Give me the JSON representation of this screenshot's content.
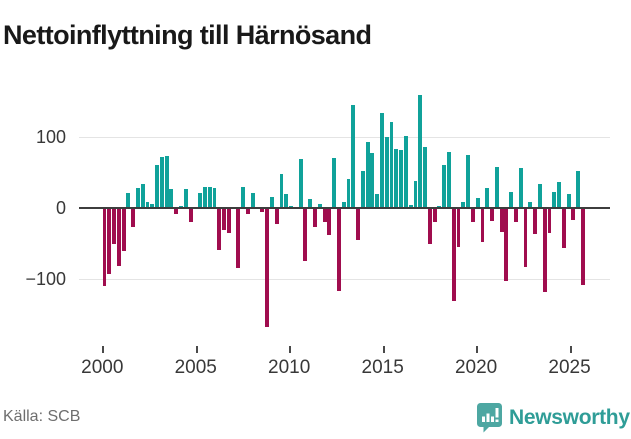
{
  "title": "Nettoinflyttning till Härnösand",
  "source": "Källa: SCB",
  "logo": {
    "text": "Newsworthy",
    "icon": "newsworthy-bars-icon"
  },
  "chart_data": {
    "type": "bar",
    "title": "Nettoinflyttning till Härnösand",
    "x_unit": "quarter",
    "x_range": [
      "2000 Q1",
      "2025 Q1"
    ],
    "grid": "horizontal",
    "legend": "none",
    "ylim": [
      -175,
      170
    ],
    "yticks": [
      100,
      0,
      -100
    ],
    "xticks": [
      2000,
      2005,
      2010,
      2015,
      2020,
      2025
    ],
    "positive_color": "#10a29a",
    "negative_color": "#a00d4e",
    "categories": [
      "2000Q1",
      "2000Q2",
      "2000Q3",
      "2000Q4",
      "2001Q1",
      "2001Q2",
      "2001Q3",
      "2001Q4",
      "2002Q1",
      "2002Q2",
      "2002Q3",
      "2002Q4",
      "2003Q1",
      "2003Q2",
      "2003Q3",
      "2003Q4",
      "2004Q1",
      "2004Q2",
      "2004Q3",
      "2004Q4",
      "2005Q1",
      "2005Q2",
      "2005Q3",
      "2005Q4",
      "2006Q1",
      "2006Q2",
      "2006Q3",
      "2006Q4",
      "2007Q1",
      "2007Q2",
      "2007Q3",
      "2007Q4",
      "2008Q1",
      "2008Q2",
      "2008Q3",
      "2008Q4",
      "2009Q1",
      "2009Q2",
      "2009Q3",
      "2009Q4",
      "2010Q1",
      "2010Q2",
      "2010Q3",
      "2010Q4",
      "2011Q1",
      "2011Q2",
      "2011Q3",
      "2011Q4",
      "2012Q1",
      "2012Q2",
      "2012Q3",
      "2012Q4",
      "2013Q1",
      "2013Q2",
      "2013Q3",
      "2013Q4",
      "2014Q1",
      "2014Q2",
      "2014Q3",
      "2014Q4",
      "2015Q1",
      "2015Q2",
      "2015Q3",
      "2015Q4",
      "2016Q1",
      "2016Q2",
      "2016Q3",
      "2016Q4",
      "2017Q1",
      "2017Q2",
      "2017Q3",
      "2017Q4",
      "2018Q1",
      "2018Q2",
      "2018Q3",
      "2018Q4",
      "2019Q1",
      "2019Q2",
      "2019Q3",
      "2019Q4",
      "2020Q1",
      "2020Q2",
      "2020Q3",
      "2020Q4",
      "2021Q1",
      "2021Q2",
      "2021Q3",
      "2021Q4",
      "2022Q1",
      "2022Q2",
      "2022Q3",
      "2022Q4",
      "2023Q1",
      "2023Q2",
      "2023Q3",
      "2023Q4",
      "2024Q1",
      "2024Q2",
      "2024Q3",
      "2024Q4",
      "2025Q1"
    ],
    "values": [
      -109,
      -92,
      -50,
      -82,
      -60,
      21,
      -27,
      28,
      33,
      8,
      5,
      61,
      72,
      73,
      27,
      -8,
      3,
      26,
      -19,
      2,
      21,
      30,
      30,
      28,
      -59,
      -31,
      -35,
      -2,
      -84,
      30,
      -8,
      21,
      2,
      -5,
      -167,
      16,
      -23,
      47,
      19,
      3,
      2,
      69,
      -75,
      12,
      -27,
      6,
      -19,
      -38,
      70,
      -117,
      9,
      40,
      144,
      -45,
      52,
      92,
      77,
      20,
      133,
      100,
      120,
      83,
      81,
      101,
      4,
      38,
      158,
      85,
      -51,
      -19,
      3,
      60,
      78,
      -131,
      -55,
      8,
      74,
      -19,
      14,
      -47,
      28,
      -18,
      58,
      -33,
      -102,
      23,
      -20,
      56,
      -83,
      9,
      -36,
      34,
      -118,
      -35,
      23,
      36,
      -56,
      20,
      -17,
      52,
      -108
    ]
  }
}
